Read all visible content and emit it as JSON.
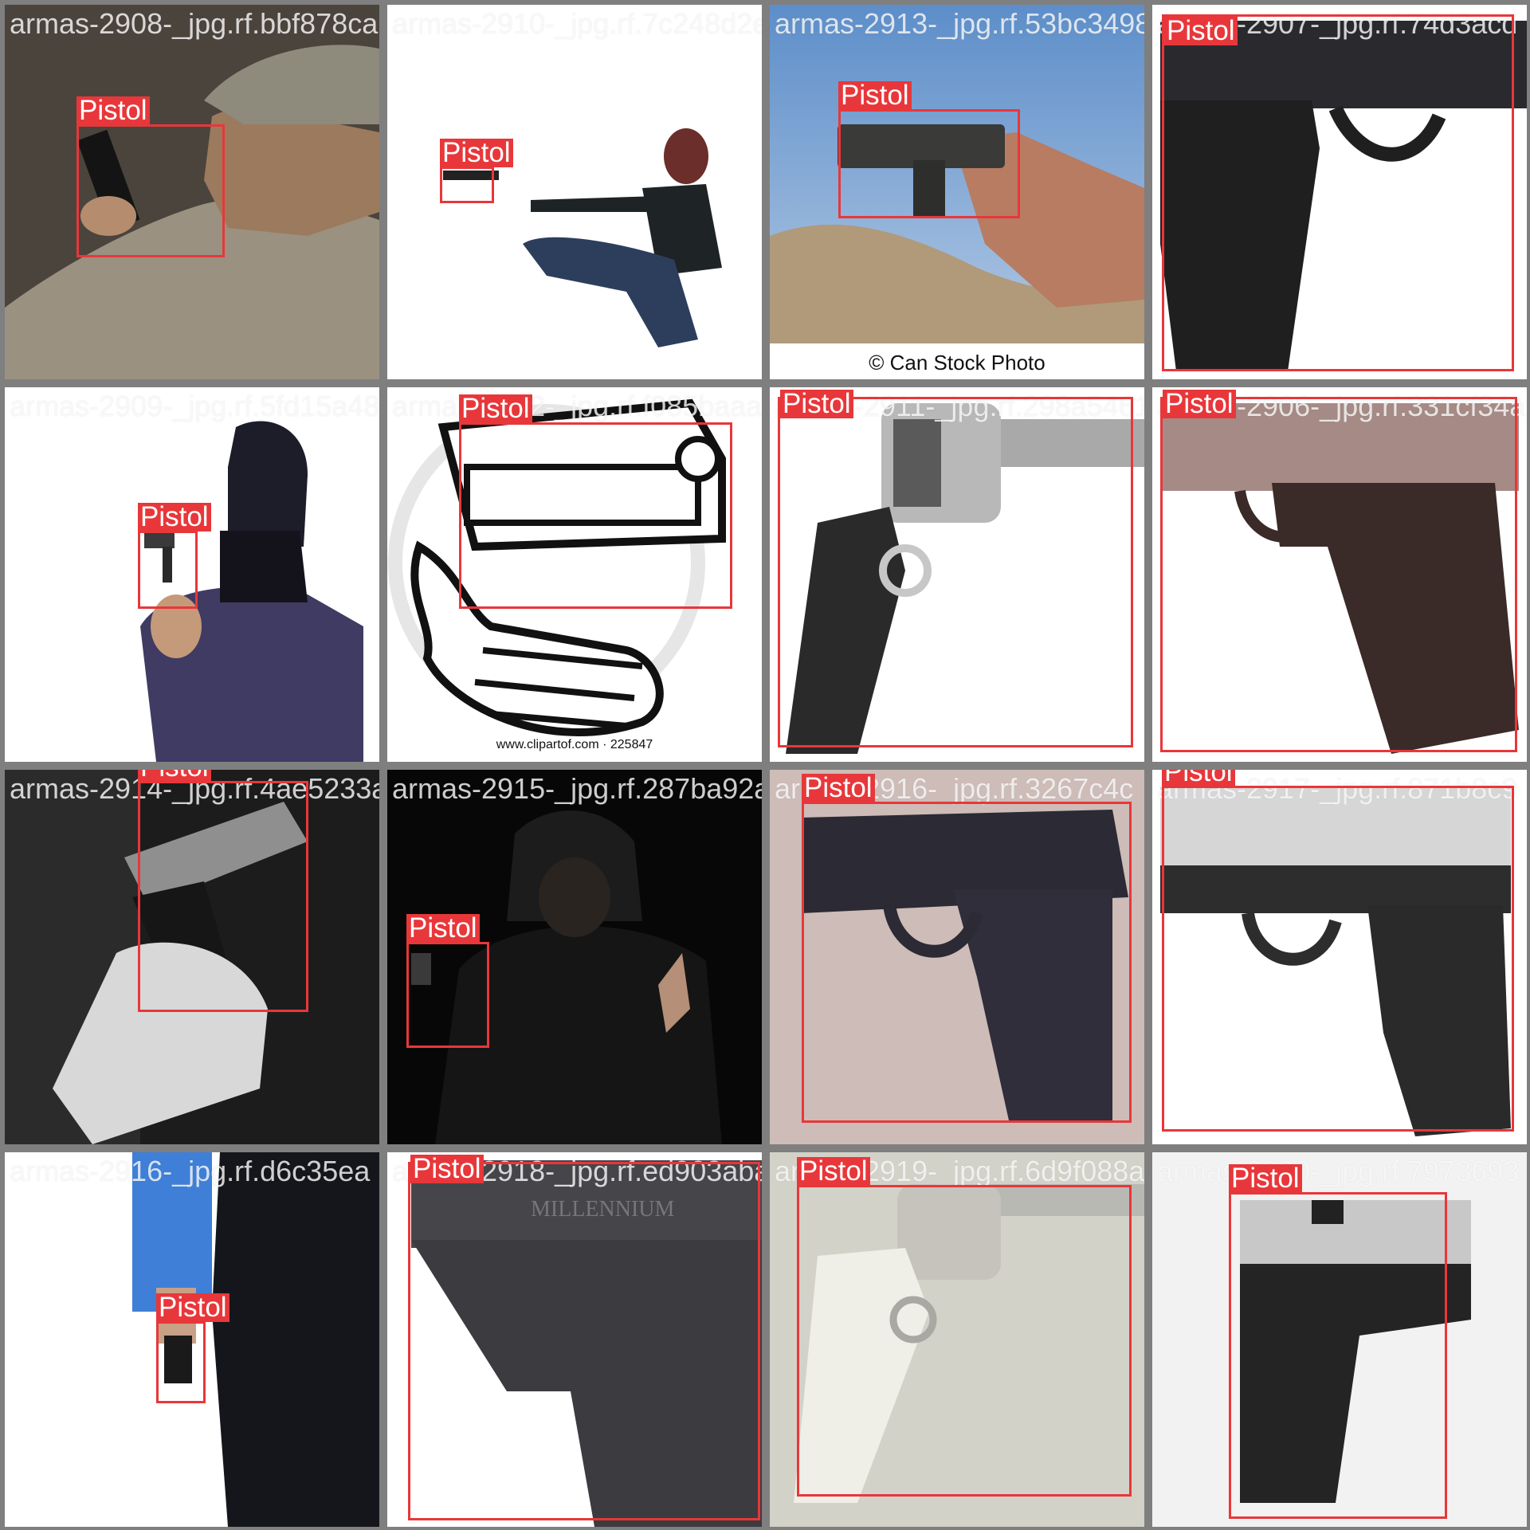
{
  "label_color": "#e8373a",
  "grid_color": "#7f7f7f",
  "tiles": [
    {
      "filename": "armas-2908-_jpg.rf.bbf878ca24ff7a7868ae",
      "scene": "soldier-aiming-pistol",
      "boxes": [
        {
          "label": "Pistol"
        }
      ]
    },
    {
      "filename": "armas-2910-_jpg.rf.7c248d2e3e7d413bbb0e",
      "scene": "woman-kneeling-aiming",
      "boxes": [
        {
          "label": "Pistol"
        }
      ]
    },
    {
      "filename": "armas-2913-_jpg.rf.53bc34986",
      "scene": "hand-holding-pistol-sky",
      "caption": "© Can Stock Photo",
      "boxes": [
        {
          "label": "Pistol"
        }
      ]
    },
    {
      "filename": "armas-2907-_jpg.rf.74d3acd",
      "scene": "pistol-closeup",
      "boxes": [
        {
          "label": "Pistol"
        }
      ]
    },
    {
      "filename": "armas-2909-_jpg.rf.5fd15a4888462a2e2",
      "scene": "masked-man-revolver",
      "boxes": [
        {
          "label": "Pistol"
        }
      ]
    },
    {
      "filename": "armas-2912-_jpg.rf.f085baaab0dae2e3ee1",
      "scene": "clipart-pointing-gun",
      "caption": "www.clipartof.com · 225847",
      "boxes": [
        {
          "label": "Pistol"
        }
      ]
    },
    {
      "filename": "armas-2911-_jpg.rf.298a54618",
      "scene": "revolver-closeup",
      "boxes": [
        {
          "label": "Pistol"
        }
      ]
    },
    {
      "filename": "armas-2906-_jpg.rf.331cf34a",
      "scene": "pistol-side-closeup",
      "boxes": [
        {
          "label": "Pistol"
        }
      ]
    },
    {
      "filename": "armas-2914-_jpg.rf.4ae5233a0d7e",
      "scene": "hand-holding-pistol-bw",
      "boxes": [
        {
          "label": "Pistol"
        }
      ]
    },
    {
      "filename": "armas-2915-_jpg.rf.287ba92a6",
      "scene": "hooded-man-dark",
      "boxes": [
        {
          "label": "Pistol"
        }
      ]
    },
    {
      "filename": "armas-2916-_jpg.rf.3267c4c",
      "scene": "pistol-on-carpet",
      "boxes": [
        {
          "label": "Pistol"
        }
      ]
    },
    {
      "filename": "armas-2917-_jpg.rf.871b8c9",
      "scene": "two-tone-pistol",
      "boxes": [
        {
          "label": "Pistol"
        }
      ]
    },
    {
      "filename": "armas-2916-_jpg.rf.d6c35ea",
      "scene": "man-holding-gun-side",
      "boxes": [
        {
          "label": "Pistol"
        }
      ]
    },
    {
      "filename": "armas-2918-_jpg.rf.ed903abab",
      "scene": "millennium-pistol",
      "brand_text": "MILLENNIUM",
      "boxes": [
        {
          "label": "Pistol"
        }
      ]
    },
    {
      "filename": "armas-2919-_jpg.rf.6d9f088a",
      "scene": "pearl-grip-revolver",
      "boxes": [
        {
          "label": "Pistol"
        }
      ]
    },
    {
      "filename": "armas-2920-_jpg.rf.7973693",
      "scene": "small-pistol-blurred",
      "boxes": [
        {
          "label": "Pistol"
        }
      ]
    }
  ]
}
